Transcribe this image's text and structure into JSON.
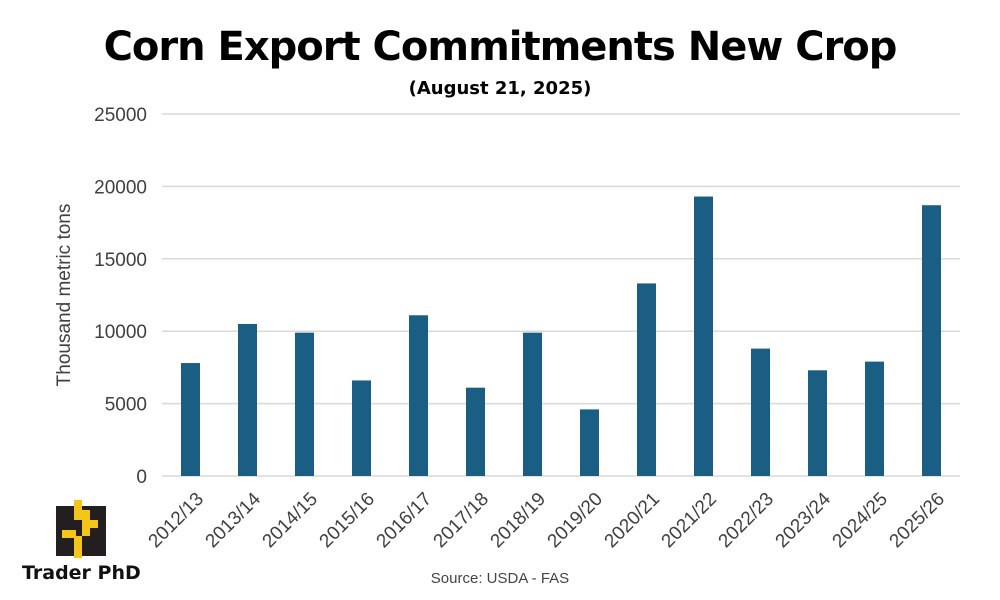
{
  "chart_data": {
    "type": "bar",
    "title": "Corn Export Commitments New Crop",
    "subtitle": "(August 21, 2025)",
    "xlabel": "",
    "ylabel": "Thousand metric tons",
    "categories": [
      "2012/13",
      "2013/14",
      "2014/15",
      "2015/16",
      "2016/17",
      "2017/18",
      "2018/19",
      "2019/20",
      "2020/21",
      "2021/22",
      "2022/23",
      "2023/24",
      "2024/25",
      "2025/26"
    ],
    "values": [
      7800,
      10500,
      9900,
      6600,
      11100,
      6100,
      9900,
      4600,
      13300,
      19300,
      8800,
      7300,
      7900,
      18700
    ],
    "ylim": [
      0,
      25000
    ],
    "yticks": [
      0,
      5000,
      10000,
      15000,
      20000,
      25000
    ],
    "grid": true,
    "legend": "none",
    "bar_color": "#1b5e84",
    "source": "Source: USDA - FAS"
  },
  "logo": {
    "text": "Trader PhD",
    "icon": "trader-phd-logo-icon",
    "colors": {
      "dark": "#231f20",
      "accent": "#f5c518"
    }
  }
}
